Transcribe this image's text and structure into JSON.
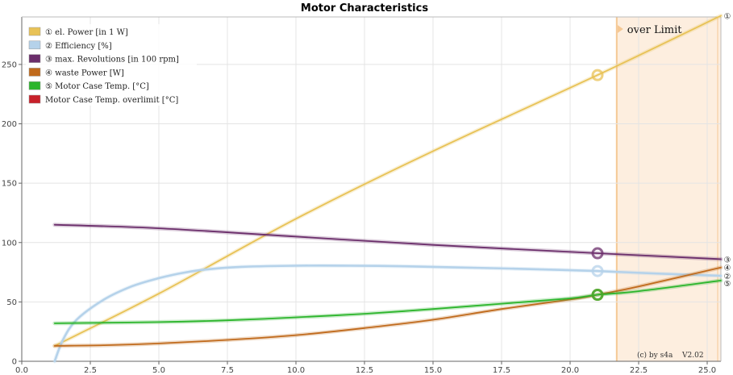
{
  "chart_data": {
    "type": "line",
    "title": "Motor Characteristics",
    "xlabel": "",
    "ylabel": "",
    "xlim": [
      0,
      25.5
    ],
    "ylim": [
      0,
      290
    ],
    "x_ticks": [
      "0.0",
      "2.5",
      "5.0",
      "7.5",
      "10.0",
      "12.5",
      "15.0",
      "17.5",
      "20.0",
      "22.5",
      "25.0"
    ],
    "y_ticks": [
      "0",
      "50",
      "100",
      "150",
      "200",
      "250"
    ],
    "grid": true,
    "legend_position": "top-left",
    "overlimit": {
      "x_start": 21.7,
      "x_end": 25.5,
      "label": "over Limit"
    },
    "operating_point_x": 21.0,
    "series": [
      {
        "name": "① el. Power [in 1 W]",
        "color": "#E8C256",
        "end_marker": "①",
        "points": [
          [
            1.2,
            13
          ],
          [
            5,
            57
          ],
          [
            10,
            120
          ],
          [
            15,
            177
          ],
          [
            21,
            241
          ],
          [
            25.5,
            291
          ]
        ]
      },
      {
        "name": "② Efficiency [%]",
        "color": "#B5D2EA",
        "end_marker": "②",
        "points": [
          [
            1.2,
            0
          ],
          [
            1.5,
            18
          ],
          [
            2,
            35
          ],
          [
            3,
            52
          ],
          [
            4,
            63
          ],
          [
            5,
            70
          ],
          [
            6,
            75
          ],
          [
            7,
            78
          ],
          [
            8,
            79.5
          ],
          [
            10,
            80.5
          ],
          [
            12,
            80.5
          ],
          [
            14,
            80
          ],
          [
            16,
            79
          ],
          [
            18,
            78
          ],
          [
            21,
            76
          ],
          [
            23,
            74
          ],
          [
            25.5,
            72
          ]
        ]
      },
      {
        "name": "③ max. Revolutions [in 100 rpm]",
        "color": "#6B2E6B",
        "end_marker": "③",
        "points": [
          [
            1.2,
            115
          ],
          [
            5,
            112
          ],
          [
            10,
            105
          ],
          [
            15,
            98
          ],
          [
            21,
            91
          ],
          [
            25.5,
            86
          ]
        ]
      },
      {
        "name": "④ waste Power [W]",
        "color": "#C06A1C",
        "end_marker": "④",
        "points": [
          [
            1.2,
            13
          ],
          [
            3,
            13.5
          ],
          [
            5,
            15
          ],
          [
            7.5,
            18
          ],
          [
            10,
            22
          ],
          [
            12.5,
            28
          ],
          [
            15,
            35
          ],
          [
            17.5,
            44
          ],
          [
            20,
            52
          ],
          [
            21,
            56
          ],
          [
            22.5,
            63
          ],
          [
            25.5,
            79
          ]
        ]
      },
      {
        "name": "⑤ Motor Case Temp. [°C]",
        "color": "#2CB52C",
        "end_marker": "⑤",
        "points": [
          [
            1.2,
            32
          ],
          [
            5,
            33
          ],
          [
            7.5,
            34.5
          ],
          [
            10,
            37
          ],
          [
            12.5,
            40
          ],
          [
            15,
            44
          ],
          [
            17.5,
            48.5
          ],
          [
            20,
            53
          ],
          [
            21,
            56
          ],
          [
            22.5,
            59
          ],
          [
            25.5,
            68
          ]
        ]
      },
      {
        "name": "Motor Case Temp. overlimit [°C]",
        "color": "#C8202A",
        "end_marker": "",
        "points": []
      }
    ],
    "footer_text": "(c) by s4a",
    "version_text": "V2.02"
  }
}
